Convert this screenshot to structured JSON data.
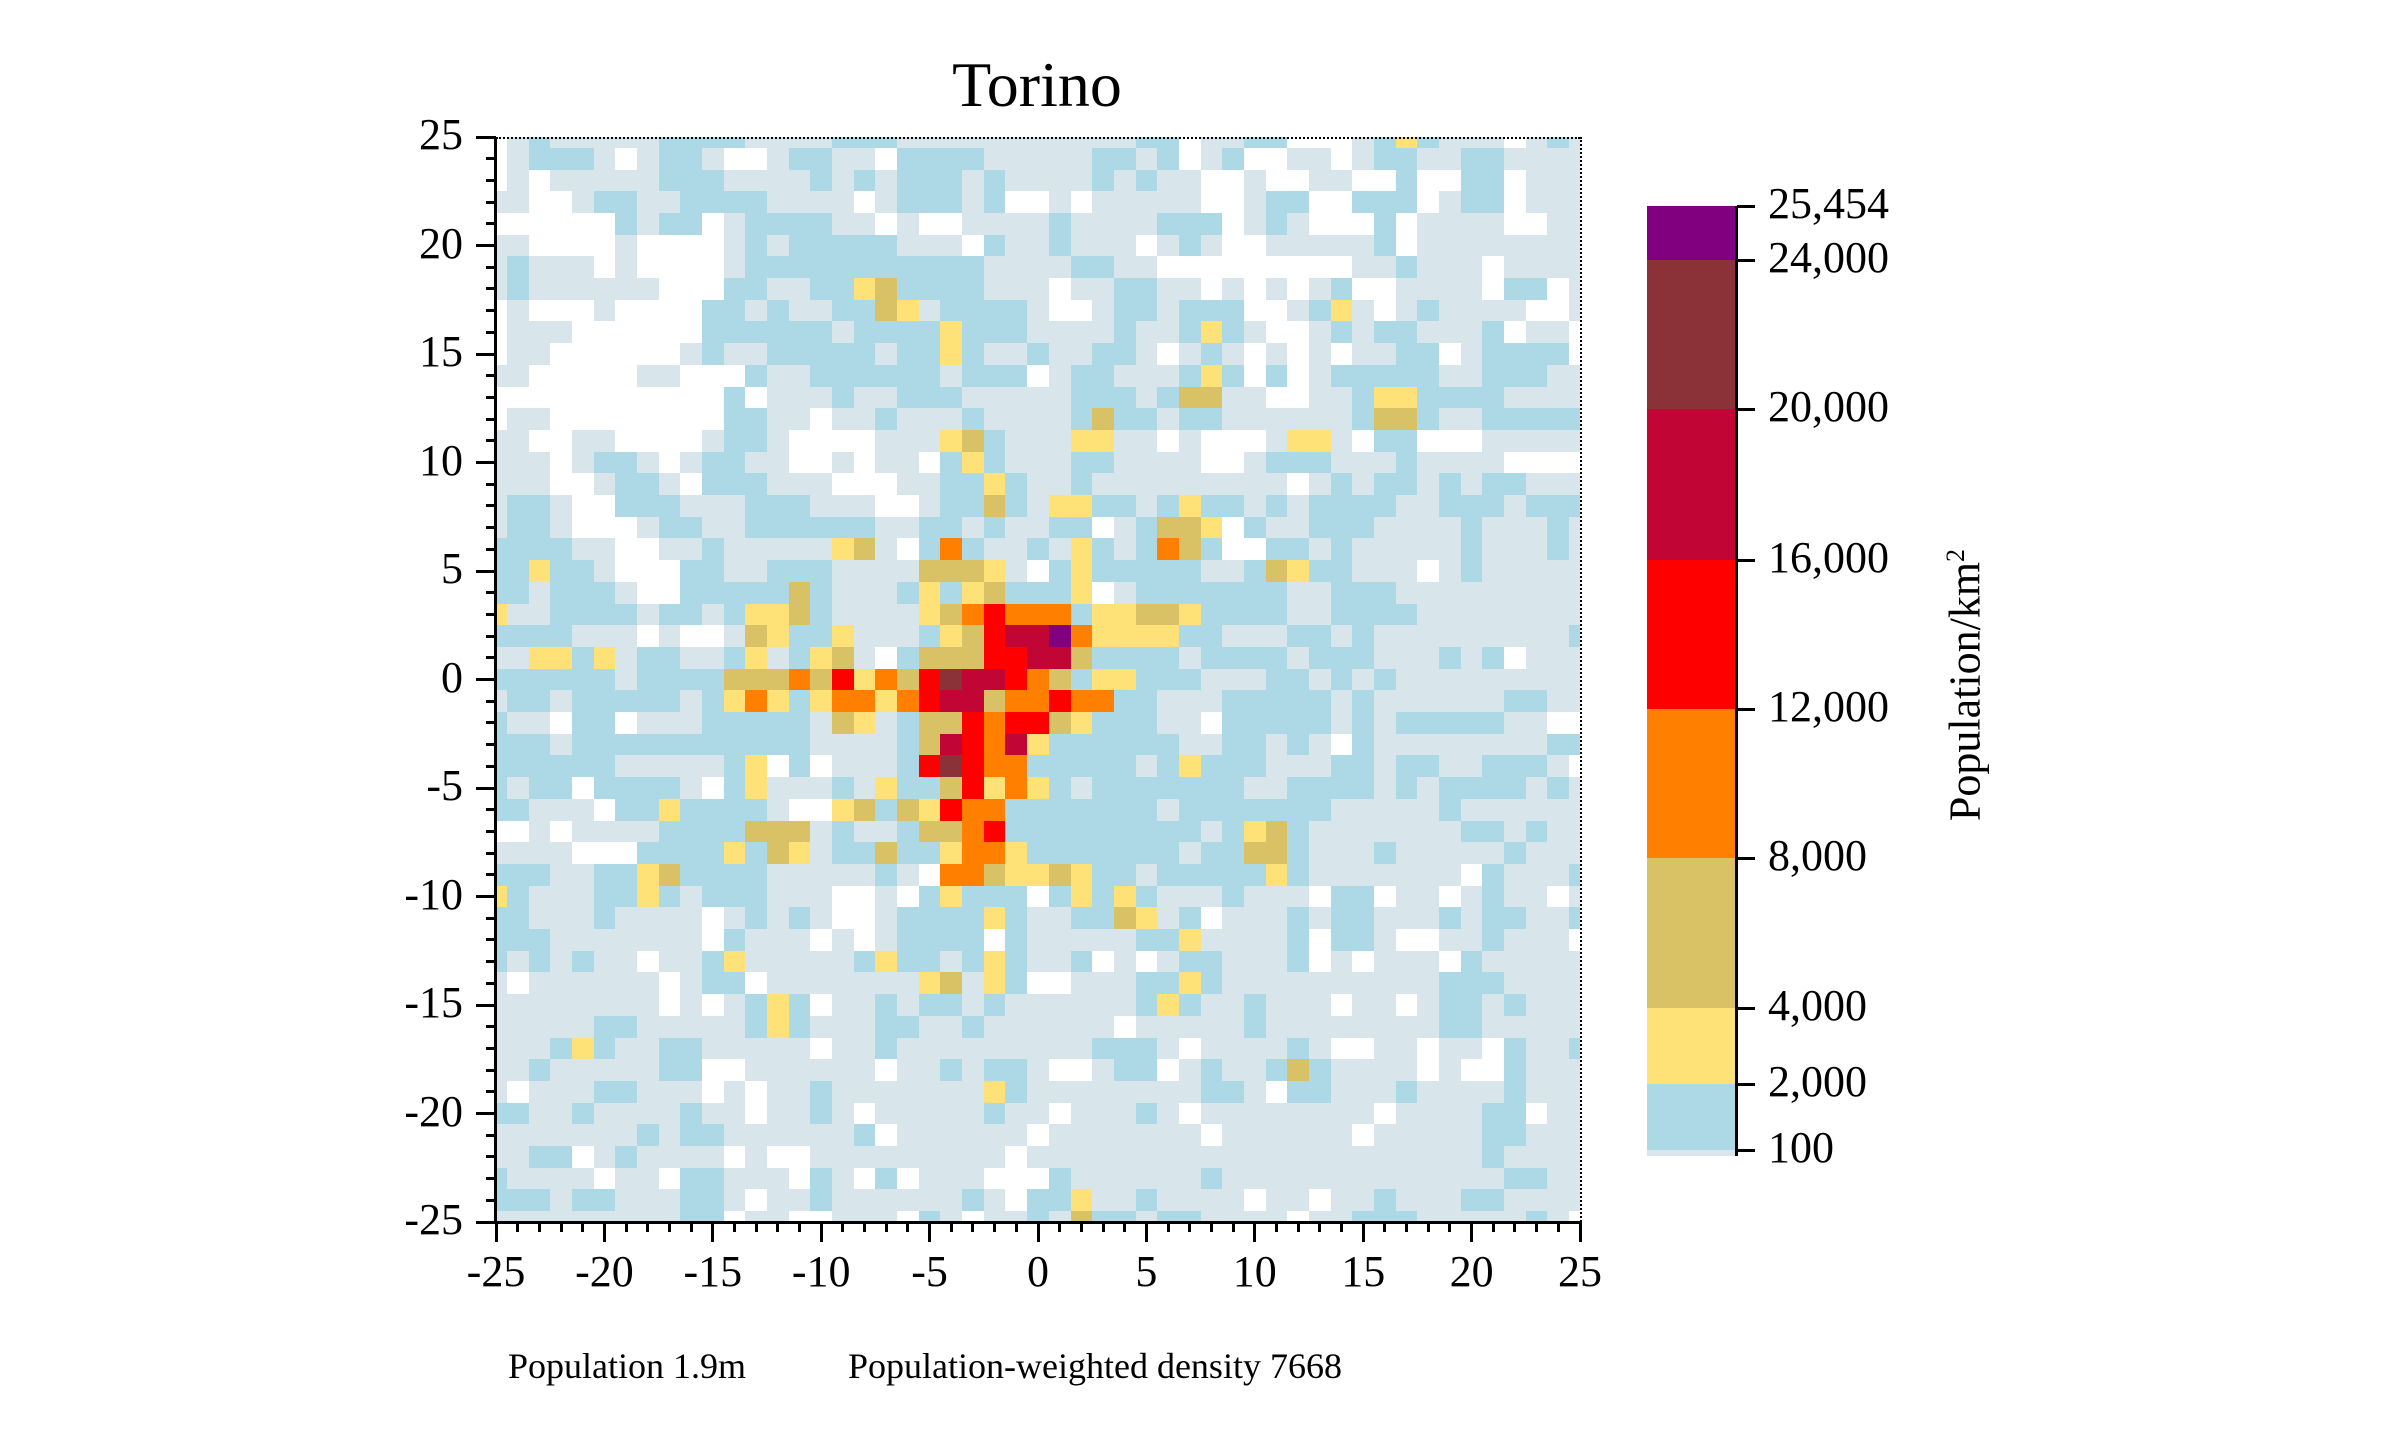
{
  "chart_data": {
    "type": "heatmap",
    "title": "Torino",
    "xlabel": "",
    "ylabel": "",
    "xlim": [
      -25,
      25
    ],
    "ylim": [
      -25,
      25
    ],
    "x_ticks": [
      -25,
      -20,
      -15,
      -10,
      -5,
      0,
      5,
      10,
      15,
      20,
      25
    ],
    "y_ticks": [
      25,
      20,
      15,
      10,
      5,
      0,
      -5,
      -10,
      -15,
      -20,
      -25
    ],
    "x_tick_labels": [
      "-25",
      "-20",
      "-15",
      "-10",
      "-5",
      "0",
      "5",
      "10",
      "15",
      "20",
      "25"
    ],
    "y_tick_labels": [
      "25",
      "20",
      "15",
      "10",
      "5",
      "0",
      "-5",
      "-10",
      "-15",
      "-20",
      "-25"
    ],
    "grid": false,
    "colorbar": {
      "label": "Population/km",
      "label_superscript": "2",
      "tick_labels": [
        "25,454",
        "24,000",
        "20,000",
        "16,000",
        "12,000",
        "8,000",
        "4,000",
        "2,000",
        "100"
      ],
      "bands": [
        {
          "from": 24000,
          "to": 25454,
          "color": "#800080",
          "key": "V"
        },
        {
          "from": 20000,
          "to": 24000,
          "color": "#8b3239",
          "key": "B"
        },
        {
          "from": 16000,
          "to": 20000,
          "color": "#c10534",
          "key": "C"
        },
        {
          "from": 12000,
          "to": 16000,
          "color": "#ff0000",
          "key": "R"
        },
        {
          "from": 8000,
          "to": 12000,
          "color": "#ff8000",
          "key": "O"
        },
        {
          "from": 4000,
          "to": 8000,
          "color": "#d9c265",
          "key": "K"
        },
        {
          "from": 2000,
          "to": 4000,
          "color": "#ffe277",
          "key": "Y"
        },
        {
          "from": 100,
          "to": 2000,
          "color": "#add8e6",
          "key": "L"
        },
        {
          "from": 0,
          "to": 100,
          "color": "#d8e6ec",
          "key": "P"
        }
      ],
      "white_key": "W"
    },
    "grid_encoding": "rows from y=25 (top) to y=-25 (bottom); each row string lists cells x=-25..25; keys map to colorbar bands (W = no data / white)",
    "rows": [
      "WPLPPPPPLLLLPPPPLLLPPPPPPPPPPPLLWPPLLWWWPLYLPPPWPLP",
      "WPLLLPWPLLPWWPLLPPWLLLLPPPPPLLPLWPLWWPPWPLLPPLLPPPP",
      "WPWPPPPPLLLPPPPLPLPLLLPLPPPPLPLPPWWPWWPPWWLWWLLWPPP",
      "PPWWPLLPPLLLLPPPPWPLLLPLWWPWPPPPPWWPLLWWLLLWPLLWPPP",
      "WWWWWWLPLLWPLLLLPPWPWWPPPPLPPPPLLLWPLPWWWLWPPPPWWPP",
      "PPWWWWPWWWWPLPLLLLLPPPWLPPLPPPWPLPWWPPPPPLWPPPPPPPP",
      "PLPPPWPWWWWPLLLLLLLLLLLPPPPLLPPWWWWWWWWWPPLPPPWPPPP",
      "PLPPPPPPWWWLLPPLLYKLLLLPPPWPPLLPPWPWPWPLWWPPPPWLLWP",
      "WPWWWPWWWWLLPLPPLLKYPLLLLPWWPLLPLLLWWPLYPWPLPPPPWWP",
      "WPPPWWWWWWLLLLLLPLLLLYLLLPPPPLPPLYLPWWPLPLLPPPLWPPW",
      "WPPWWWWWWPLPPLLLLLPLLYLPPLPPLLPWPLPWPWPWPPLLWPLLLLW",
      "PPWWWWWPPWWWLPPLLLLLLPLLLWPLLPPPLYLWLWPLLLLLPPLLLPP",
      "WWWWWWWWWWWLWPPPLPPLLLPPPPPLLLPLKKPPWWPPLYYLLLLPPPP",
      "WPPWWWWWWWWLLPPWPPLPPPLPPPPLKLLPLLPPPPPPLKKLPPLLLLL",
      "PPWWPPWWWWPLLPWWWWPPPYKLPPPYYPPWPWWWPYYPWLLWWWPPPPP",
      "PPPWPLLPWPLLPPWWPWPPWLYLPPPLLPPPPWWPLLLPPPLPPPPWWWW",
      "PPPWWPLLPWLLLPPPWWWPPLLYLPPLPPPPPPPPPWPLPLLPLPLLPPP",
      "PLLPWWLLLPPPLLLPPPWWPLLKLPYYLLPLYLLPLPLLLLPPLLLPLLL",
      "PLLPWWWPLLPPLLLLLLPPLLPLPPLLWPLKKYWLPPLLLPPPPLPPPLP",
      "LLLLPPWWPPLPPPPPYKPWLOLPPLPYLPLOKLWWLLPLPPPPPLPPPLP",
      "LLYLLPWWWLLPPLLLPPPPKKKYPWLYLLLLLPPLKYLLPPPWPLPPPPP",
      "LLPLLLPWWLLLLLKLPPPLYLYKLLLYWPLLLLLLLPPLLLPPPPPPPPP",
      "YPPLLLLPLLPLYYKLPPPPYKOROOOLYYKKYLLLLPPLLLLPPPPPPPP",
      "LLLLPPPWPWWPKYLLYPPPLYKRCCVOYYYYLLPPPLLPLPPPPPPPPPL",
      "PPYYLYPLLPPLYPLYKPWLKKKRRCCKLLLLPLLLLPLLLPPPLPLWPPP",
      "LLLLLLPLLLLKKKOKRYOKRBCCROKLYYLLLPPPLLPLPLPPPPPPPPP",
      "PLLPLLLLLPLYOYLYOOYORCCKOOROOLLPPPLLLLLPLPPPPPPLLPP",
      "LPPWLLWPPPLLLLLPKYPLKKRORRKYLLLPPWLLLLLPLPLLLLLPPWW",
      "LLLPLLLLLLLLLLLPPPPLKCROCYLLLLLLPPLLPLPWLPPPPPPPPLL",
      "LLLLLLPPPPPLYWLWPPPLRBROOLLLLLPLYLLLPPPLLPLLPPLLLPW",
      "LPLLWLLLLPWLYPPPLPYLLKRYOYLPLLLLLLLPPLLLLPLPLLLLPLP",
      "LLPPPWLLYLLLLPWWYKLKYROOLLLLLLLPLLLLLLLPPPPPLPPPPPP",
      "WWPWPPPPLLLLKKKPLPPLKKORLLLLLLLLLPLYKLPPPPPPPLLPLPP",
      "PPPPWWWLLLLYLKYPLLKLLYOOYLLLLLLLPLLKKLPPPLPPPPPLPPP",
      "LLLPPLLYKLLLLPPPPPLPWOOKYYKYLLPLLLLLYLPPPPPPPWLPPPL",
      "YLPPPLLYLPLLLPPPWWPWLYLLLWLYLYLPPPLPPPWLLWPPWPLPPWP",
      "LLPPPLPPPPWPLPLPWWPLLLLYLPPLLKYPLWPPPLPLLPPPLPLLPPL",
      "LLLPPPPPPPWLPPPWPWPLLLLWLPPPPPLLYPPPPLWLLPWWPPLPPPW",
      "LPLPLPPWPPLYPPPPPLYLLPLYLPPLWPWPLLPPPLWPWPPPWLPPPPP",
      "PWPPPPPPWPLLWPPPPPPPYKPYLWWPPPLLYLPPPPPPPPPPLLLPPP",
      "PPPPPPPPWPWPLYLWPPLPLLPLPPPPPPLYLPPLPPPWPPWPLLPLPPP",
      "PPPPPLLPPPPPLYLPPPLLPPLPPPPPPWPPPPPLPPPPPPPPLLPPPPP",
      "PPPLYLPPLLPPPPPWPPLPPPPPPPPPLLLPWPPPPLPWWPPWPPWLPPL",
      "PPLPPPPPLLWWPPPPPPWPPLPLLPWWPLLWPLPPLKLPPPPWPWWLPPP",
      "PWPPPLLPPPWPWPPLPPPPPPPYLPPPPPPPPLLPWLLPPPLPPPPLPPP",
      "LLPPLPPPPLPPWPPLPWPPPPPLPPWPPPLPWPPPPPPPPWPPPPLLWPP",
      "PPPPPPPLPLLPPPPPPLWPPPPPPWPPPPPPPWPPPPPPWPPPPPLLPPP",
      "PPLLWPLPPPPWPWWPPPPPPPPPWPPPPPPPPPPPPPPPPPPPPPLPPPP",
      "LPPPPWPPWLLPPPWLPWLWPPPWWWLPPPPPPLPPPPPPPPPPPPPLLP",
      "LLLPLLPPPLLPWPPLPPPPPPLPWLLYPPLPPPPWPPWPPLPPPLLPPPP",
      "PPPPPPPPPLLWPPWWPPPWLPWPPLPKLLPLLPPPPWPPLLLPPPPPLPW"
    ],
    "annotations": [
      "Population 1.9m",
      "Population-weighted density 7668"
    ]
  },
  "header": {
    "title": "Torino"
  },
  "footer": {
    "population": "Population 1.9m",
    "weighted_density": "Population-weighted density 7668"
  },
  "colorbar": {
    "label": "Population/km",
    "label_sup": "2"
  }
}
